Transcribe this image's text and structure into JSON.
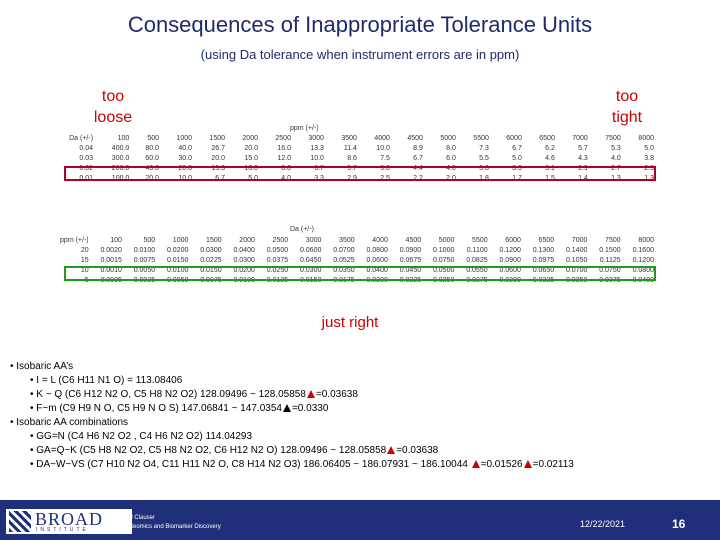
{
  "title": "Consequences of Inappropriate Tolerance Units",
  "subtitle": "(using Da tolerance when instrument errors are in ppm)",
  "labels": {
    "too_loose": [
      "too",
      "loose"
    ],
    "too_tight": [
      "too",
      "tight"
    ],
    "just_right": "just right"
  },
  "table1": {
    "group_label": "ppm (+/-)",
    "corner": "Da (+/-)",
    "columns": [
      "100",
      "500",
      "1000",
      "1500",
      "2000",
      "2500",
      "3000",
      "3500",
      "4000",
      "4500",
      "5000",
      "5500",
      "6000",
      "6500",
      "7000",
      "7500",
      "8000"
    ],
    "rows": [
      {
        "h": "0.04",
        "v": [
          "400.0",
          "80.0",
          "40.0",
          "26.7",
          "20.0",
          "16.0",
          "13.3",
          "11.4",
          "10.0",
          "8.9",
          "8.0",
          "7.3",
          "6.7",
          "6.2",
          "5.7",
          "5.3",
          "5.0"
        ]
      },
      {
        "h": "0.03",
        "v": [
          "300.0",
          "60.0",
          "30.0",
          "20.0",
          "15.0",
          "12.0",
          "10.0",
          "8.6",
          "7.5",
          "6.7",
          "6.0",
          "5.5",
          "5.0",
          "4.6",
          "4.3",
          "4.0",
          "3.8"
        ]
      },
      {
        "h": "0.02",
        "v": [
          "200.0",
          "40.0",
          "20.0",
          "13.3",
          "10.0",
          "8.0",
          "6.7",
          "5.7",
          "5.0",
          "4.4",
          "4.0",
          "3.6",
          "3.3",
          "3.1",
          "2.9",
          "2.7",
          "2.5"
        ]
      },
      {
        "h": "0.01",
        "v": [
          "100.0",
          "20.0",
          "10.0",
          "6.7",
          "5.0",
          "4.0",
          "3.3",
          "2.9",
          "2.5",
          "2.2",
          "2.0",
          "1.8",
          "1.7",
          "1.5",
          "1.4",
          "1.3",
          "1.3"
        ]
      }
    ]
  },
  "table2": {
    "group_label": "Da (+/-)",
    "corner": "ppm (+/-)",
    "columns": [
      "100",
      "500",
      "1000",
      "1500",
      "2000",
      "2500",
      "3000",
      "3500",
      "4000",
      "4500",
      "5000",
      "5500",
      "6000",
      "6500",
      "7000",
      "7500",
      "8000"
    ],
    "rows": [
      {
        "h": "20",
        "v": [
          "0.0020",
          "0.0100",
          "0.0200",
          "0.0300",
          "0.0400",
          "0.0500",
          "0.0600",
          "0.0700",
          "0.0800",
          "0.0900",
          "0.1000",
          "0.1100",
          "0.1200",
          "0.1300",
          "0.1400",
          "0.1500",
          "0.1600"
        ]
      },
      {
        "h": "15",
        "v": [
          "0.0015",
          "0.0075",
          "0.0150",
          "0.0225",
          "0.0300",
          "0.0375",
          "0.0450",
          "0.0525",
          "0.0600",
          "0.0675",
          "0.0750",
          "0.0825",
          "0.0900",
          "0.0975",
          "0.1050",
          "0.1125",
          "0.1200"
        ]
      },
      {
        "h": "10",
        "v": [
          "0.0010",
          "0.0050",
          "0.0100",
          "0.0150",
          "0.0200",
          "0.0250",
          "0.0300",
          "0.0350",
          "0.0400",
          "0.0450",
          "0.0500",
          "0.0550",
          "0.0600",
          "0.0650",
          "0.0700",
          "0.0750",
          "0.0800"
        ]
      },
      {
        "h": "5",
        "v": [
          "0.0005",
          "0.0025",
          "0.0050",
          "0.0075",
          "0.0100",
          "0.0125",
          "0.0150",
          "0.0175",
          "0.0200",
          "0.0225",
          "0.0250",
          "0.0275",
          "0.0300",
          "0.0325",
          "0.0350",
          "0.0375",
          "0.0400"
        ]
      }
    ]
  },
  "bullets": {
    "b1": "• Isobaric AA’s",
    "b1a": "• I = L (C6 H11 N1 O) = 113.08406",
    "b1b_text": "• K ~ Q (C6 H12 N2 O, C5 H8 N2 O2) 128.09496 ~ 128.05858",
    "b1b_delta": "=0.03638",
    "b1c_text": "• F~m (C9 H9 N O, C5 H9 N O S) 147.06841 ~ 147.0354",
    "b1c_delta": "=0.0330",
    "b2": "• Isobaric AA combinations",
    "b2a": "• GG=N (C4 H6 N2 O2 , C4 H6 N2 O2) 114.04293",
    "b2b_text": "• GA=Q~K (C5 H8 N2 O2, C5 H8 N2 O2, C6 H12 N2 O) 128.09496 ~ 128.05858",
    "b2b_delta": "=0.03638",
    "b2c_text": "• DA~W~VS (C7 H10 N2 O4, C11 H11 N2 O, C8 H14 N2 O3) 186.06405 ~ 186.07931 ~ 186.10044",
    "b2c_delta1": "=0.01526",
    "b2c_delta2": "=0.02113"
  },
  "footer": {
    "logo_word": "BROAD",
    "logo_sub": "INSTITUTE",
    "author_line1": "Karl Clauser",
    "author_line2": "Proteomics and Biomarker Discovery",
    "date": "12/22/2021",
    "page": "16"
  },
  "colors": {
    "title": "#1f2a6b",
    "red": "#cc0000",
    "box_red": "#b0002a",
    "box_green": "#1e9c1e",
    "footer": "#1f2f7a"
  }
}
